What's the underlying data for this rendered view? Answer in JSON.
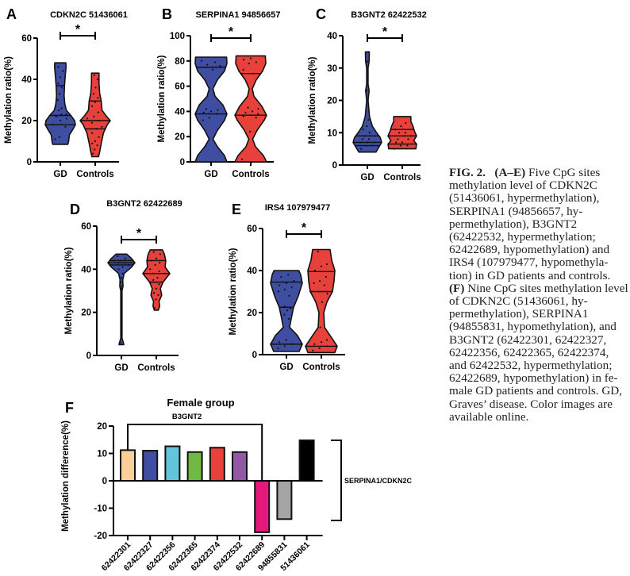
{
  "chart_data": [
    {
      "panel": "A",
      "type": "violin",
      "title": "CDKN2C 51436061",
      "ylabel": "Methylation ratio(%)",
      "ylim": [
        0,
        60
      ],
      "yticks": [
        0,
        20,
        40,
        60
      ],
      "categories": [
        "GD",
        "Controls"
      ],
      "significance": "*",
      "series": [
        {
          "name": "GD",
          "color": "#3f4ea0",
          "min": 8.5,
          "max": 48,
          "median": 18,
          "q1": 18,
          "q3": 22.5,
          "q_upper": 37,
          "profile": [
            [
              8.5,
              0.5
            ],
            [
              10,
              0.55
            ],
            [
              13,
              0.6
            ],
            [
              16,
              0.85
            ],
            [
              18,
              1.0
            ],
            [
              20,
              0.95
            ],
            [
              22.5,
              0.7
            ],
            [
              25,
              0.4
            ],
            [
              28,
              0.3
            ],
            [
              32,
              0.25
            ],
            [
              37,
              0.28
            ],
            [
              42,
              0.33
            ],
            [
              46,
              0.38
            ],
            [
              48,
              0.37
            ]
          ],
          "points": [
            11,
            12,
            17,
            18,
            20,
            21,
            22,
            23,
            23,
            25,
            26,
            30,
            33,
            36,
            38,
            41,
            44,
            46
          ]
        },
        {
          "name": "Controls",
          "color": "#e8413c",
          "min": 2.5,
          "max": 43,
          "median": 20,
          "q1": 16,
          "q3": 29.5,
          "profile": [
            [
              2.5,
              0.22
            ],
            [
              5,
              0.3
            ],
            [
              9,
              0.4
            ],
            [
              14,
              0.55
            ],
            [
              18,
              0.8
            ],
            [
              20,
              1.0
            ],
            [
              22,
              0.75
            ],
            [
              25,
              0.45
            ],
            [
              29.5,
              0.4
            ],
            [
              33,
              0.3
            ],
            [
              38,
              0.25
            ],
            [
              43,
              0.25
            ]
          ],
          "points": [
            4,
            6,
            8,
            9,
            10,
            12,
            14,
            16,
            17,
            19,
            20,
            21,
            22,
            24,
            27,
            29,
            31,
            33,
            36,
            40,
            42
          ]
        }
      ]
    },
    {
      "panel": "B",
      "type": "violin",
      "title": "SERPINA1 94856657",
      "ylabel": "Methylation ratio(%)",
      "ylim": [
        0,
        100
      ],
      "yticks": [
        0,
        20,
        40,
        60,
        80,
        100
      ],
      "categories": [
        "GD",
        "Controls"
      ],
      "significance": "*",
      "series": [
        {
          "name": "GD",
          "color": "#3f4ea0",
          "min": 0,
          "max": 83,
          "median": 38,
          "q1": 38,
          "q3": 75,
          "profile": [
            [
              0,
              1.0
            ],
            [
              5,
              0.85
            ],
            [
              12,
              0.4
            ],
            [
              18,
              0.12
            ],
            [
              25,
              0.4
            ],
            [
              33,
              0.85
            ],
            [
              38,
              1.0
            ],
            [
              45,
              0.75
            ],
            [
              52,
              0.25
            ],
            [
              58,
              0.12
            ],
            [
              65,
              0.4
            ],
            [
              72,
              0.85
            ],
            [
              78,
              1.0
            ],
            [
              83,
              0.98
            ]
          ],
          "points": [
            33,
            35,
            38,
            39,
            40,
            41,
            42,
            73,
            76,
            77,
            79,
            80
          ]
        },
        {
          "name": "Controls",
          "color": "#e8413c",
          "min": 0,
          "max": 84,
          "median": 37,
          "q1": 37,
          "q3": 70,
          "profile": [
            [
              0,
              1.0
            ],
            [
              5,
              0.8
            ],
            [
              12,
              0.3
            ],
            [
              18,
              0.12
            ],
            [
              25,
              0.4
            ],
            [
              33,
              0.85
            ],
            [
              37,
              1.0
            ],
            [
              44,
              0.7
            ],
            [
              52,
              0.2
            ],
            [
              58,
              0.1
            ],
            [
              65,
              0.35
            ],
            [
              72,
              0.75
            ],
            [
              78,
              0.95
            ],
            [
              84,
              0.92
            ]
          ],
          "points": [
            2,
            24,
            35,
            36,
            37,
            38,
            39,
            40,
            42,
            43,
            70,
            73,
            78,
            79,
            81,
            82
          ]
        }
      ]
    },
    {
      "panel": "C",
      "type": "violin",
      "title": "B3GNT2 62422532",
      "ylabel": "Methylation ratio(%)",
      "ylim": [
        0,
        40
      ],
      "yticks": [
        0,
        10,
        20,
        30,
        40
      ],
      "categories": [
        "GD",
        "Controls"
      ],
      "significance": "*",
      "series": [
        {
          "name": "GD",
          "color": "#3f4ea0",
          "min": 4,
          "max": 35,
          "median": 7,
          "q1": 6,
          "q3": 9,
          "profile": [
            [
              4,
              0.6
            ],
            [
              5.5,
              0.8
            ],
            [
              7,
              1.0
            ],
            [
              8.5,
              0.9
            ],
            [
              10,
              0.65
            ],
            [
              12,
              0.35
            ],
            [
              15,
              0.15
            ],
            [
              20,
              0.05
            ],
            [
              23,
              0.12
            ],
            [
              25,
              0.05
            ],
            [
              30,
              0.05
            ],
            [
              32,
              0.12
            ],
            [
              35,
              0.14
            ]
          ],
          "points": [
            5,
            6,
            6,
            7,
            7,
            7,
            8,
            8,
            9,
            9,
            10,
            11,
            12,
            14,
            23,
            32,
            35
          ]
        },
        {
          "name": "Controls",
          "color": "#e8413c",
          "min": 5,
          "max": 15,
          "median": 9,
          "q1": 6.5,
          "q3": 11,
          "profile": [
            [
              5,
              0.95
            ],
            [
              6.5,
              1.0
            ],
            [
              7.5,
              0.8
            ],
            [
              9,
              1.0
            ],
            [
              10.5,
              0.85
            ],
            [
              12,
              0.75
            ],
            [
              13.5,
              0.6
            ],
            [
              15,
              0.6
            ]
          ],
          "points": [
            5,
            6,
            6,
            7,
            7,
            8,
            8,
            9,
            9,
            10,
            10,
            11,
            12,
            13
          ]
        }
      ]
    },
    {
      "panel": "D",
      "type": "violin",
      "title": "B3GNT2 62422689",
      "ylabel": "Methylation ratio(%)",
      "ylim": [
        0,
        60
      ],
      "yticks": [
        0,
        20,
        40,
        60
      ],
      "categories": [
        "GD",
        "Controls"
      ],
      "significance": "*",
      "series": [
        {
          "name": "GD",
          "color": "#3f4ea0",
          "min": 5,
          "max": 47,
          "median": 43,
          "q1": 42,
          "q3": 44,
          "profile": [
            [
              5,
              0.18
            ],
            [
              6,
              0.14
            ],
            [
              8,
              0.05
            ],
            [
              20,
              0.05
            ],
            [
              30,
              0.05
            ],
            [
              32,
              0.12
            ],
            [
              35,
              0.1
            ],
            [
              38,
              0.2
            ],
            [
              41,
              0.75
            ],
            [
              43,
              1.0
            ],
            [
              45,
              0.75
            ],
            [
              47,
              0.4
            ]
          ],
          "points": [
            6,
            31,
            32,
            34,
            36,
            38,
            40,
            41,
            42,
            43,
            43,
            44,
            44,
            45,
            46
          ]
        },
        {
          "name": "Controls",
          "color": "#e8413c",
          "min": 21,
          "max": 49,
          "median": 38,
          "q1": 34,
          "q3": 44,
          "profile": [
            [
              21,
              0.15
            ],
            [
              23,
              0.25
            ],
            [
              25,
              0.2
            ],
            [
              28,
              0.4
            ],
            [
              31,
              0.3
            ],
            [
              34,
              0.5
            ],
            [
              38,
              1.0
            ],
            [
              41,
              0.65
            ],
            [
              44,
              0.7
            ],
            [
              47,
              0.6
            ],
            [
              49,
              0.45
            ]
          ],
          "points": [
            22,
            26,
            28,
            29,
            31,
            33,
            35,
            36,
            38,
            38,
            39,
            40,
            42,
            43,
            44,
            45,
            47,
            48
          ]
        }
      ]
    },
    {
      "panel": "E",
      "type": "violin",
      "title": "IRS4 107979477",
      "ylabel": "Methylation ratio(%)",
      "ylim": [
        0,
        60
      ],
      "yticks": [
        0,
        20,
        40,
        60
      ],
      "categories": [
        "GD",
        "Controls"
      ],
      "significance": "*",
      "series": [
        {
          "name": "GD",
          "color": "#3f4ea0",
          "min": 1.5,
          "max": 40,
          "median": 22.5,
          "q1": 5,
          "q3": 34.5,
          "profile": [
            [
              1.5,
              0.8
            ],
            [
              5,
              1.0
            ],
            [
              9,
              0.7
            ],
            [
              13,
              0.2
            ],
            [
              17,
              0.3
            ],
            [
              22.5,
              0.45
            ],
            [
              28,
              0.75
            ],
            [
              34,
              1.0
            ],
            [
              38,
              0.9
            ],
            [
              40,
              0.78
            ]
          ],
          "points": [
            3,
            4,
            5,
            6,
            7,
            17,
            19,
            21,
            22,
            23,
            28,
            30,
            31,
            32,
            33,
            34,
            35,
            37,
            38
          ]
        },
        {
          "name": "Controls",
          "color": "#e8413c",
          "min": 1,
          "max": 50,
          "median": 30,
          "q1": 4,
          "q3": 39.5,
          "profile": [
            [
              1,
              0.85
            ],
            [
              4,
              1.0
            ],
            [
              8,
              0.65
            ],
            [
              13,
              0.2
            ],
            [
              20,
              0.15
            ],
            [
              25,
              0.35
            ],
            [
              30,
              0.7
            ],
            [
              35,
              0.8
            ],
            [
              40,
              0.85
            ],
            [
              45,
              0.65
            ],
            [
              50,
              0.55
            ]
          ],
          "points": [
            2,
            3,
            4,
            5,
            6,
            7,
            13,
            25,
            29,
            30,
            33,
            34,
            35,
            37,
            40,
            42,
            43,
            49
          ]
        }
      ]
    },
    {
      "panel": "F",
      "type": "bar",
      "title": "Female group",
      "ylabel": "Methylation difference(%)",
      "ylim": [
        -20,
        20
      ],
      "yticks": [
        -20,
        -10,
        0,
        10,
        20
      ],
      "categories": [
        "62422301",
        "62422327",
        "62422356",
        "62422365",
        "62422374",
        "62422532",
        "62422689",
        "94855831",
        "51436061"
      ],
      "values": [
        11.2,
        11.0,
        12.6,
        10.5,
        12.1,
        10.5,
        -18.8,
        -14.0,
        14.8
      ],
      "colors": [
        "#f9cf9a",
        "#3f4ea0",
        "#62c5d9",
        "#72b944",
        "#e8413c",
        "#9457a6",
        "#e5197c",
        "#a5a5a5",
        "#000000"
      ],
      "annotations": [
        {
          "label": "B3GNT2",
          "spans": [
            "62422301",
            "62422689"
          ],
          "position": "top-bracket"
        },
        {
          "label": "SERPINA1/CDKN2C",
          "spans": [
            "94855831",
            "51436061"
          ],
          "position": "right-bracket"
        }
      ]
    }
  ],
  "caption": {
    "fig_label": "FIG. 2.",
    "part_ae_label": "(A–E)",
    "part_ae_text": " Five CpG sites methylation level of CDKN2C (51436061, hypermethylation), SERPINA1 (94856657, hy- permethylation), B3GNT2 (62422532, hypermethylation; 62422689, hypomethylation) and IRS4 (107979477, hypomethyla- tion) in GD patients and controls. ",
    "part_f_label": "(F)",
    "part_f_text": " Nine CpG sites methylation level of CDKN2C (51436061, hy- permethylation), SERPINA1 (94855831, hypomethylation), and B3GNT2 (62422301, 62422327, 62422356, 62422365, 62422374, and 62422532, hypermethylation; 62422689, hypomethylation) in fe- male GD patients and controls. GD, Graves’ disease. Color images are available online."
  }
}
